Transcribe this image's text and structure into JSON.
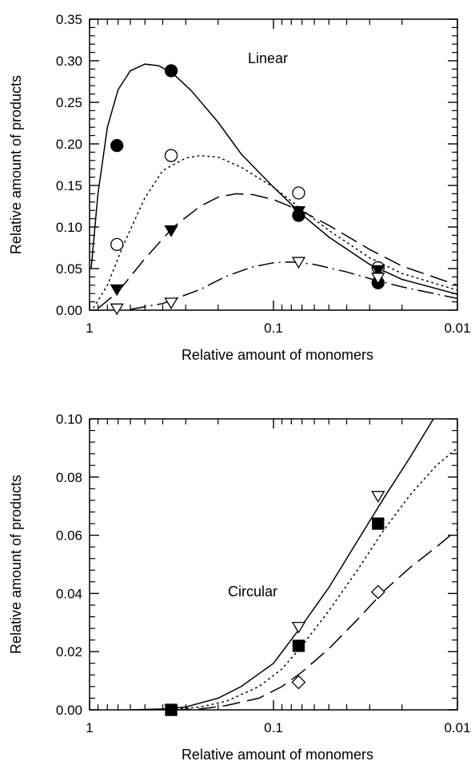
{
  "chart_data": [
    {
      "type": "scatter",
      "title": "",
      "annotation": "Linear",
      "xlabel": "Relative amount of monomers",
      "ylabel": "Relative amount of products",
      "xscale": "log",
      "xreversed": true,
      "xlim": [
        1,
        0.01
      ],
      "ylim": [
        0,
        0.35
      ],
      "xticks": [
        {
          "value": 1,
          "label": "1"
        },
        {
          "value": 0.1,
          "label": "0.1"
        },
        {
          "value": 0.01,
          "label": "0.01"
        }
      ],
      "yticks": [
        {
          "value": 0,
          "label": "0.00"
        },
        {
          "value": 0.05,
          "label": "0.05"
        },
        {
          "value": 0.1,
          "label": "0.10"
        },
        {
          "value": 0.15,
          "label": "0.15"
        },
        {
          "value": 0.2,
          "label": "0.20"
        },
        {
          "value": 0.25,
          "label": "0.25"
        },
        {
          "value": 0.3,
          "label": "0.30"
        },
        {
          "value": 0.35,
          "label": "0.35"
        }
      ],
      "grid": false,
      "series": [
        {
          "marker": "filled-circle",
          "line": "solid",
          "color": "#000000",
          "points": [
            {
              "x": 0.71,
              "y": 0.198
            },
            {
              "x": 0.36,
              "y": 0.288
            },
            {
              "x": 0.073,
              "y": 0.114
            },
            {
              "x": 0.027,
              "y": 0.033
            }
          ],
          "curve": [
            {
              "x": 0.98,
              "y": 0.05
            },
            {
              "x": 0.9,
              "y": 0.14
            },
            {
              "x": 0.8,
              "y": 0.22
            },
            {
              "x": 0.7,
              "y": 0.265
            },
            {
              "x": 0.6,
              "y": 0.288
            },
            {
              "x": 0.5,
              "y": 0.296
            },
            {
              "x": 0.42,
              "y": 0.294
            },
            {
              "x": 0.35,
              "y": 0.284
            },
            {
              "x": 0.28,
              "y": 0.264
            },
            {
              "x": 0.2,
              "y": 0.226
            },
            {
              "x": 0.15,
              "y": 0.188
            },
            {
              "x": 0.1,
              "y": 0.148
            },
            {
              "x": 0.07,
              "y": 0.115
            },
            {
              "x": 0.05,
              "y": 0.088
            },
            {
              "x": 0.03,
              "y": 0.055
            },
            {
              "x": 0.02,
              "y": 0.037
            },
            {
              "x": 0.01,
              "y": 0.019
            }
          ]
        },
        {
          "marker": "open-circle",
          "line": "dotted",
          "color": "#000000",
          "points": [
            {
              "x": 0.71,
              "y": 0.079
            },
            {
              "x": 0.36,
              "y": 0.186
            },
            {
              "x": 0.073,
              "y": 0.141
            },
            {
              "x": 0.027,
              "y": 0.051
            }
          ],
          "curve": [
            {
              "x": 0.95,
              "y": 0.003
            },
            {
              "x": 0.8,
              "y": 0.03
            },
            {
              "x": 0.65,
              "y": 0.08
            },
            {
              "x": 0.5,
              "y": 0.135
            },
            {
              "x": 0.4,
              "y": 0.168
            },
            {
              "x": 0.3,
              "y": 0.183
            },
            {
              "x": 0.25,
              "y": 0.186
            },
            {
              "x": 0.2,
              "y": 0.184
            },
            {
              "x": 0.15,
              "y": 0.172
            },
            {
              "x": 0.1,
              "y": 0.148
            },
            {
              "x": 0.07,
              "y": 0.121
            },
            {
              "x": 0.05,
              "y": 0.096
            },
            {
              "x": 0.03,
              "y": 0.063
            },
            {
              "x": 0.02,
              "y": 0.044
            },
            {
              "x": 0.01,
              "y": 0.024
            }
          ]
        },
        {
          "marker": "filled-triangle-down",
          "line": "dashed",
          "color": "#000000",
          "points": [
            {
              "x": 0.71,
              "y": 0.025
            },
            {
              "x": 0.36,
              "y": 0.096
            },
            {
              "x": 0.073,
              "y": 0.119
            },
            {
              "x": 0.027,
              "y": 0.048
            }
          ],
          "curve": [
            {
              "x": 0.9,
              "y": 0.002
            },
            {
              "x": 0.7,
              "y": 0.022
            },
            {
              "x": 0.5,
              "y": 0.062
            },
            {
              "x": 0.35,
              "y": 0.1
            },
            {
              "x": 0.25,
              "y": 0.125
            },
            {
              "x": 0.2,
              "y": 0.136
            },
            {
              "x": 0.16,
              "y": 0.14
            },
            {
              "x": 0.13,
              "y": 0.139
            },
            {
              "x": 0.1,
              "y": 0.133
            },
            {
              "x": 0.07,
              "y": 0.119
            },
            {
              "x": 0.05,
              "y": 0.102
            },
            {
              "x": 0.03,
              "y": 0.073
            },
            {
              "x": 0.02,
              "y": 0.053
            },
            {
              "x": 0.01,
              "y": 0.03
            }
          ]
        },
        {
          "marker": "open-triangle-down",
          "line": "dash-dot",
          "color": "#000000",
          "points": [
            {
              "x": 0.71,
              "y": 0.002
            },
            {
              "x": 0.36,
              "y": 0.009
            },
            {
              "x": 0.073,
              "y": 0.058
            },
            {
              "x": 0.027,
              "y": 0.039
            }
          ],
          "curve": [
            {
              "x": 0.6,
              "y": 0.001
            },
            {
              "x": 0.4,
              "y": 0.008
            },
            {
              "x": 0.25,
              "y": 0.025
            },
            {
              "x": 0.18,
              "y": 0.041
            },
            {
              "x": 0.13,
              "y": 0.052
            },
            {
              "x": 0.1,
              "y": 0.057
            },
            {
              "x": 0.08,
              "y": 0.058
            },
            {
              "x": 0.06,
              "y": 0.055
            },
            {
              "x": 0.04,
              "y": 0.046
            },
            {
              "x": 0.03,
              "y": 0.038
            },
            {
              "x": 0.02,
              "y": 0.028
            },
            {
              "x": 0.01,
              "y": 0.014
            }
          ]
        }
      ]
    },
    {
      "type": "scatter",
      "title": "",
      "annotation": "Circular",
      "xlabel": "Relative amount of monomers",
      "ylabel": "Relative amount of products",
      "xscale": "log",
      "xreversed": true,
      "xlim": [
        1,
        0.01
      ],
      "ylim": [
        0,
        0.1
      ],
      "xticks": [
        {
          "value": 1,
          "label": "1"
        },
        {
          "value": 0.1,
          "label": "0.1"
        },
        {
          "value": 0.01,
          "label": "0.01"
        }
      ],
      "yticks": [
        {
          "value": 0,
          "label": "0.00"
        },
        {
          "value": 0.02,
          "label": "0.02"
        },
        {
          "value": 0.04,
          "label": "0.04"
        },
        {
          "value": 0.06,
          "label": "0.06"
        },
        {
          "value": 0.08,
          "label": "0.08"
        },
        {
          "value": 0.1,
          "label": "0.10"
        }
      ],
      "grid": false,
      "series": [
        {
          "marker": "open-triangle-down",
          "line": "solid",
          "color": "#000000",
          "points": [
            {
              "x": 0.36,
              "y": 0.0
            },
            {
              "x": 0.073,
              "y": 0.0285
            },
            {
              "x": 0.027,
              "y": 0.0735
            }
          ],
          "curve": [
            {
              "x": 0.6,
              "y": 0.0
            },
            {
              "x": 0.4,
              "y": 0.0003
            },
            {
              "x": 0.3,
              "y": 0.001
            },
            {
              "x": 0.2,
              "y": 0.004
            },
            {
              "x": 0.15,
              "y": 0.008
            },
            {
              "x": 0.1,
              "y": 0.016
            },
            {
              "x": 0.07,
              "y": 0.029
            },
            {
              "x": 0.05,
              "y": 0.042
            },
            {
              "x": 0.035,
              "y": 0.058
            },
            {
              "x": 0.025,
              "y": 0.073
            },
            {
              "x": 0.018,
              "y": 0.087
            },
            {
              "x": 0.0135,
              "y": 0.1
            }
          ]
        },
        {
          "marker": "filled-square",
          "line": "dotted",
          "color": "#000000",
          "points": [
            {
              "x": 0.36,
              "y": 0.0
            },
            {
              "x": 0.073,
              "y": 0.022
            },
            {
              "x": 0.027,
              "y": 0.064
            }
          ],
          "curve": [
            {
              "x": 0.5,
              "y": 0.0
            },
            {
              "x": 0.35,
              "y": 0.0002
            },
            {
              "x": 0.25,
              "y": 0.001
            },
            {
              "x": 0.18,
              "y": 0.003
            },
            {
              "x": 0.12,
              "y": 0.008
            },
            {
              "x": 0.09,
              "y": 0.014
            },
            {
              "x": 0.07,
              "y": 0.022
            },
            {
              "x": 0.05,
              "y": 0.034
            },
            {
              "x": 0.035,
              "y": 0.048
            },
            {
              "x": 0.025,
              "y": 0.062
            },
            {
              "x": 0.018,
              "y": 0.074
            },
            {
              "x": 0.013,
              "y": 0.084
            },
            {
              "x": 0.01,
              "y": 0.09
            }
          ]
        },
        {
          "marker": "open-diamond",
          "line": "dashed",
          "color": "#000000",
          "points": [
            {
              "x": 0.073,
              "y": 0.0095
            },
            {
              "x": 0.027,
              "y": 0.0405
            }
          ],
          "curve": [
            {
              "x": 0.35,
              "y": 0.0
            },
            {
              "x": 0.25,
              "y": 0.0003
            },
            {
              "x": 0.18,
              "y": 0.0015
            },
            {
              "x": 0.12,
              "y": 0.004
            },
            {
              "x": 0.09,
              "y": 0.008
            },
            {
              "x": 0.07,
              "y": 0.013
            },
            {
              "x": 0.05,
              "y": 0.021
            },
            {
              "x": 0.035,
              "y": 0.031
            },
            {
              "x": 0.025,
              "y": 0.041
            },
            {
              "x": 0.018,
              "y": 0.049
            },
            {
              "x": 0.013,
              "y": 0.056
            },
            {
              "x": 0.01,
              "y": 0.062
            }
          ]
        }
      ]
    }
  ]
}
